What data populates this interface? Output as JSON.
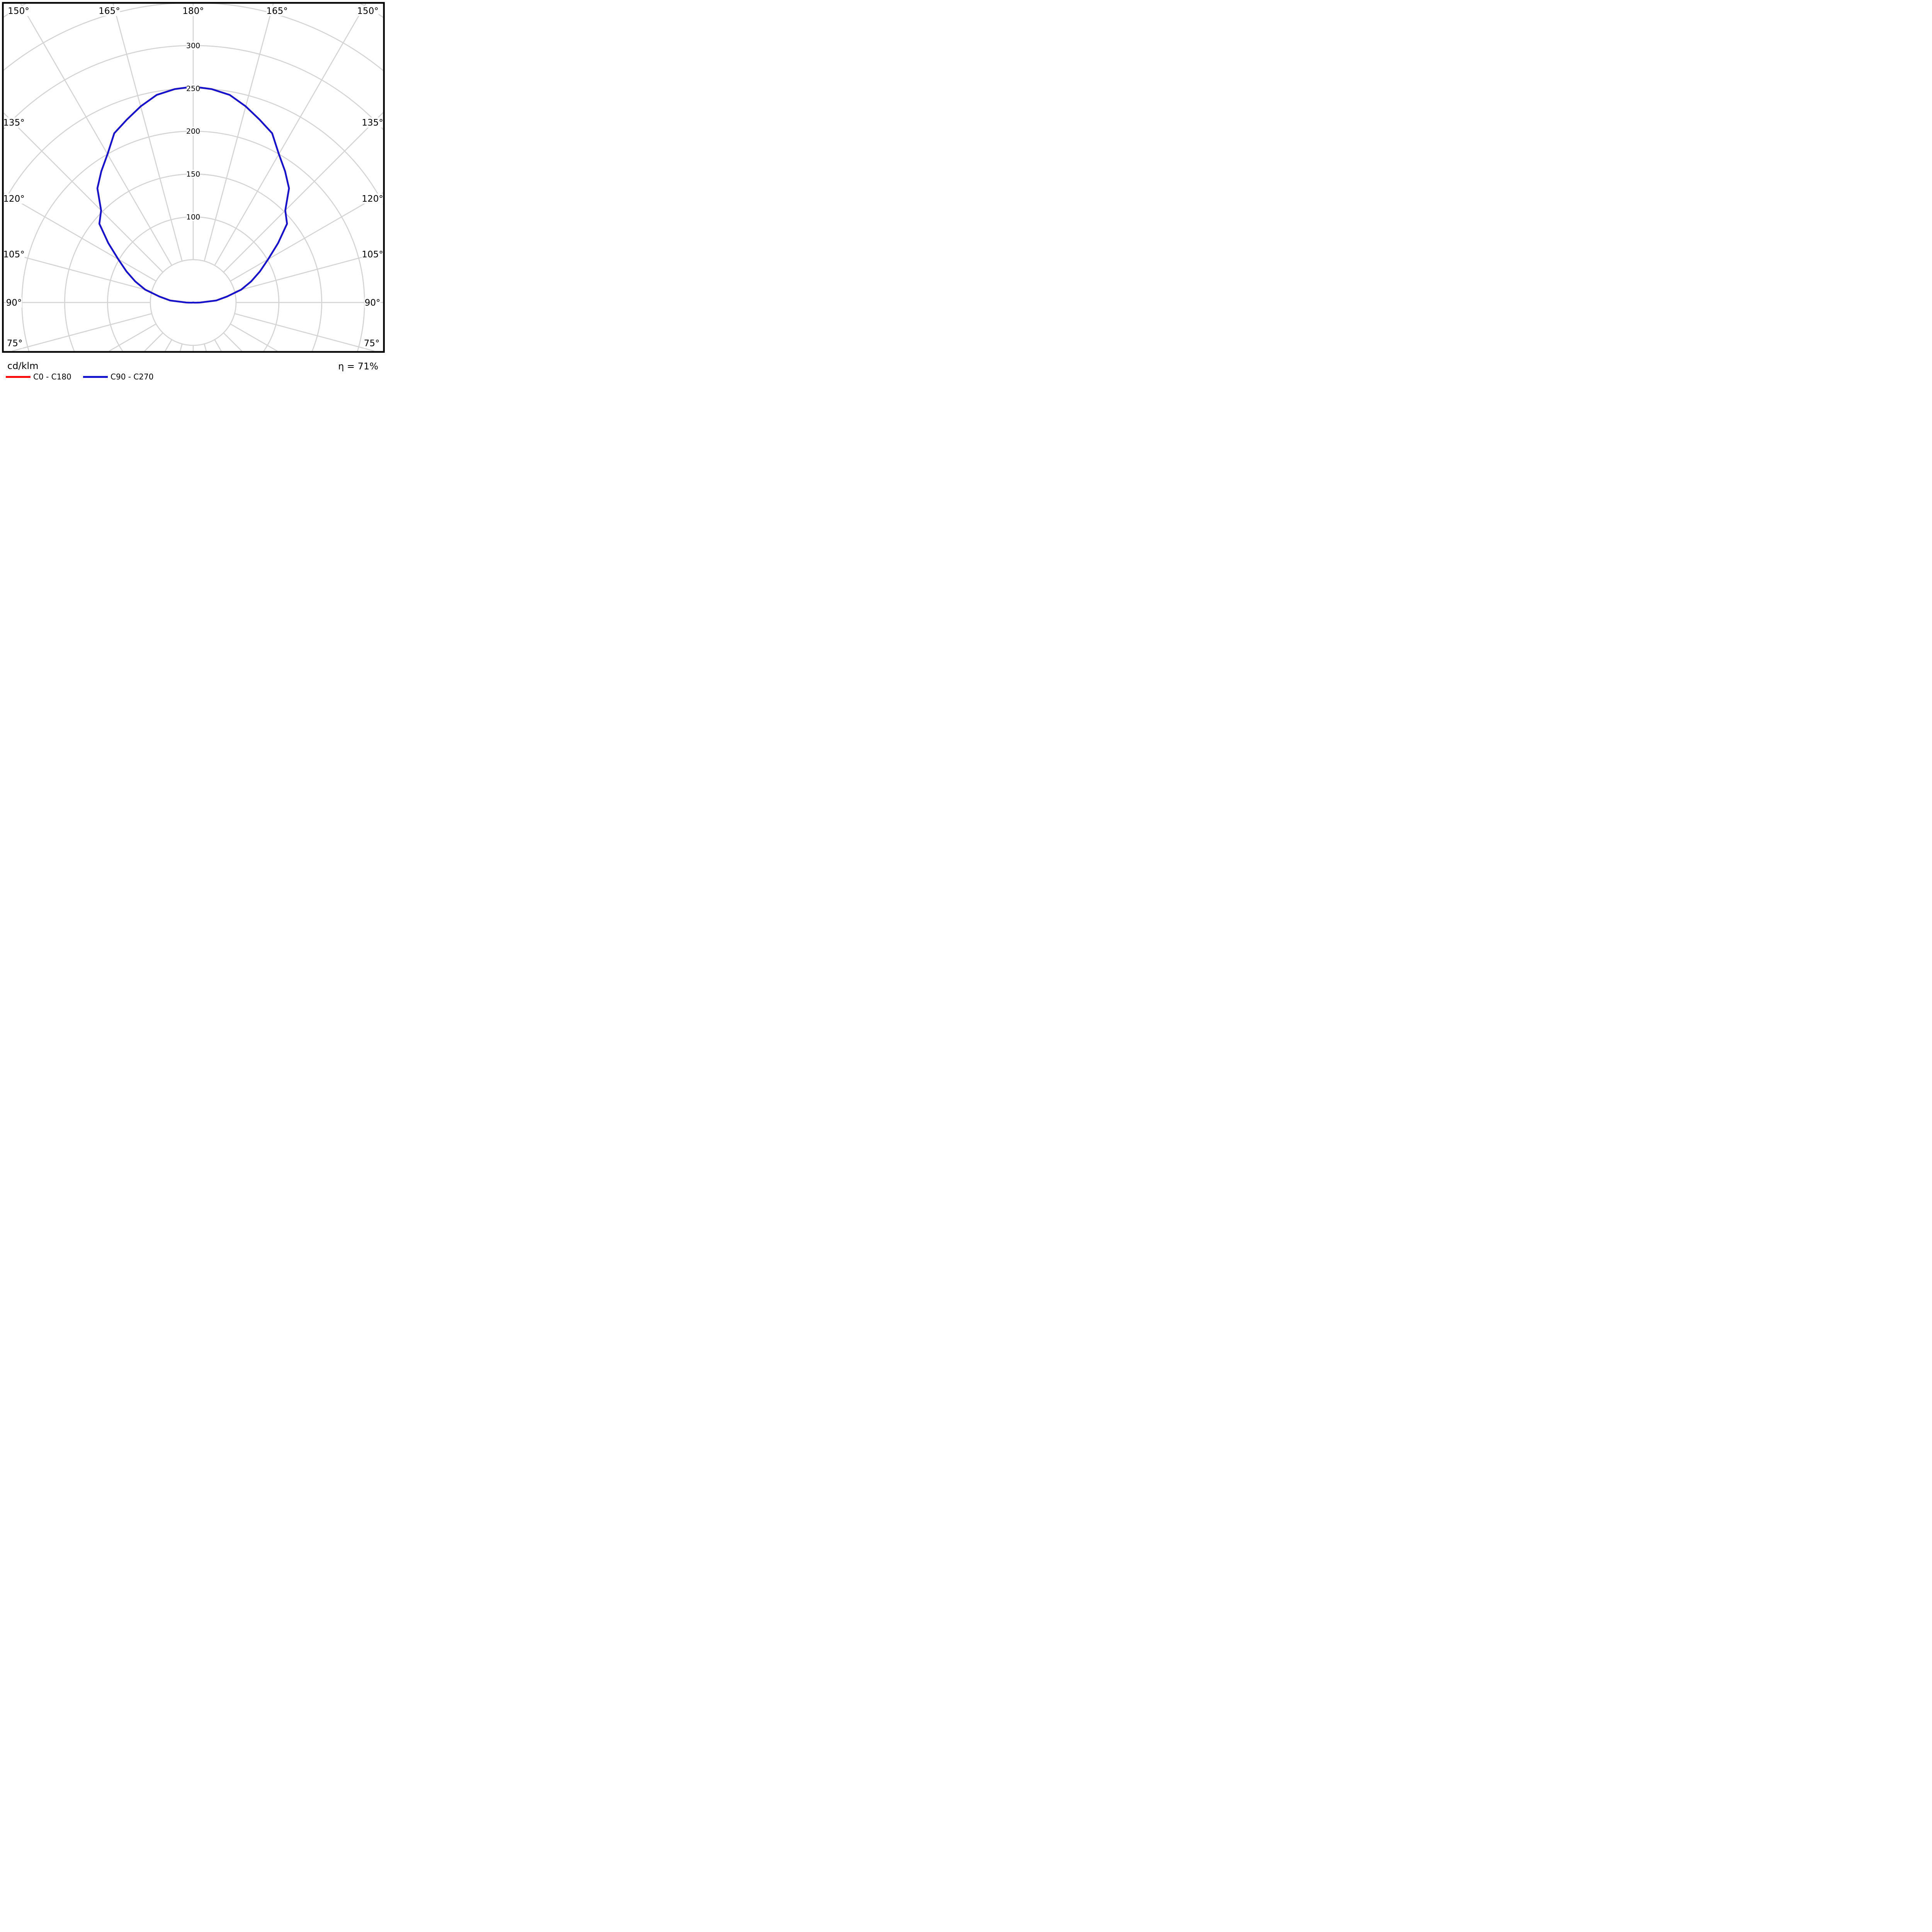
{
  "chart_data": {
    "type": "line",
    "subtype": "polar-photometric",
    "title": "",
    "units_label": "cd/klm",
    "efficiency_text": "η = 71%",
    "axes": {
      "radial_ticks": [
        100,
        150,
        200,
        250,
        300
      ],
      "radial_tick_labels": [
        "100",
        "150",
        "200",
        "250",
        "300"
      ],
      "radial_grid_step": 50,
      "radial_grid_max": 400,
      "ray_step_deg": 15,
      "angle_labels": [
        "150°",
        "165°",
        "180°",
        "165°",
        "150°",
        "135°",
        "120°",
        "105°",
        "90°",
        "75°",
        "135°",
        "120°",
        "105°",
        "90°",
        "75°"
      ],
      "grid_color": "#d4d4d4",
      "border_color": "#000000"
    },
    "series": [
      {
        "name": "C0 - C180",
        "color": "#fa0a0a",
        "gamma_deg": [
          0,
          5,
          10,
          15,
          20,
          25,
          30,
          35,
          40,
          45,
          50,
          55,
          60,
          65,
          70,
          75,
          80,
          85,
          90,
          95,
          100,
          105,
          110,
          115,
          120,
          125,
          130,
          135,
          140,
          145,
          150,
          155,
          160,
          165,
          170,
          175,
          180
        ],
        "values_cd_klm": [
          0,
          0,
          0,
          0,
          0,
          0,
          0,
          0,
          0,
          0,
          0,
          0,
          0,
          0,
          0,
          0,
          0,
          2,
          8,
          27,
          40,
          58,
          72,
          86,
          101,
          121,
          143,
          152,
          174,
          187,
          200,
          218,
          227,
          237,
          246,
          250,
          252
        ]
      },
      {
        "name": "C90 - C270",
        "color": "#1414cc",
        "gamma_deg": [
          0,
          5,
          10,
          15,
          20,
          25,
          30,
          35,
          40,
          45,
          50,
          55,
          60,
          65,
          70,
          75,
          80,
          85,
          90,
          95,
          100,
          105,
          110,
          115,
          120,
          125,
          130,
          135,
          140,
          145,
          150,
          155,
          160,
          165,
          170,
          175,
          180
        ],
        "values_cd_klm": [
          0,
          0,
          0,
          0,
          0,
          0,
          0,
          0,
          0,
          0,
          0,
          0,
          0,
          0,
          0,
          0,
          0,
          2,
          8,
          27,
          40,
          58,
          72,
          86,
          101,
          121,
          143,
          152,
          174,
          187,
          200,
          218,
          227,
          237,
          246,
          250,
          252
        ]
      }
    ],
    "legend_position": "bottom-left",
    "symmetric_left_right": true
  },
  "legend": {
    "items": [
      {
        "label": "C0 - C180",
        "color": "#fa0a0a"
      },
      {
        "label": "C90 - C270",
        "color": "#1414cc"
      }
    ]
  },
  "texts": {
    "units": "cd/klm",
    "efficiency": "η = 71%"
  }
}
